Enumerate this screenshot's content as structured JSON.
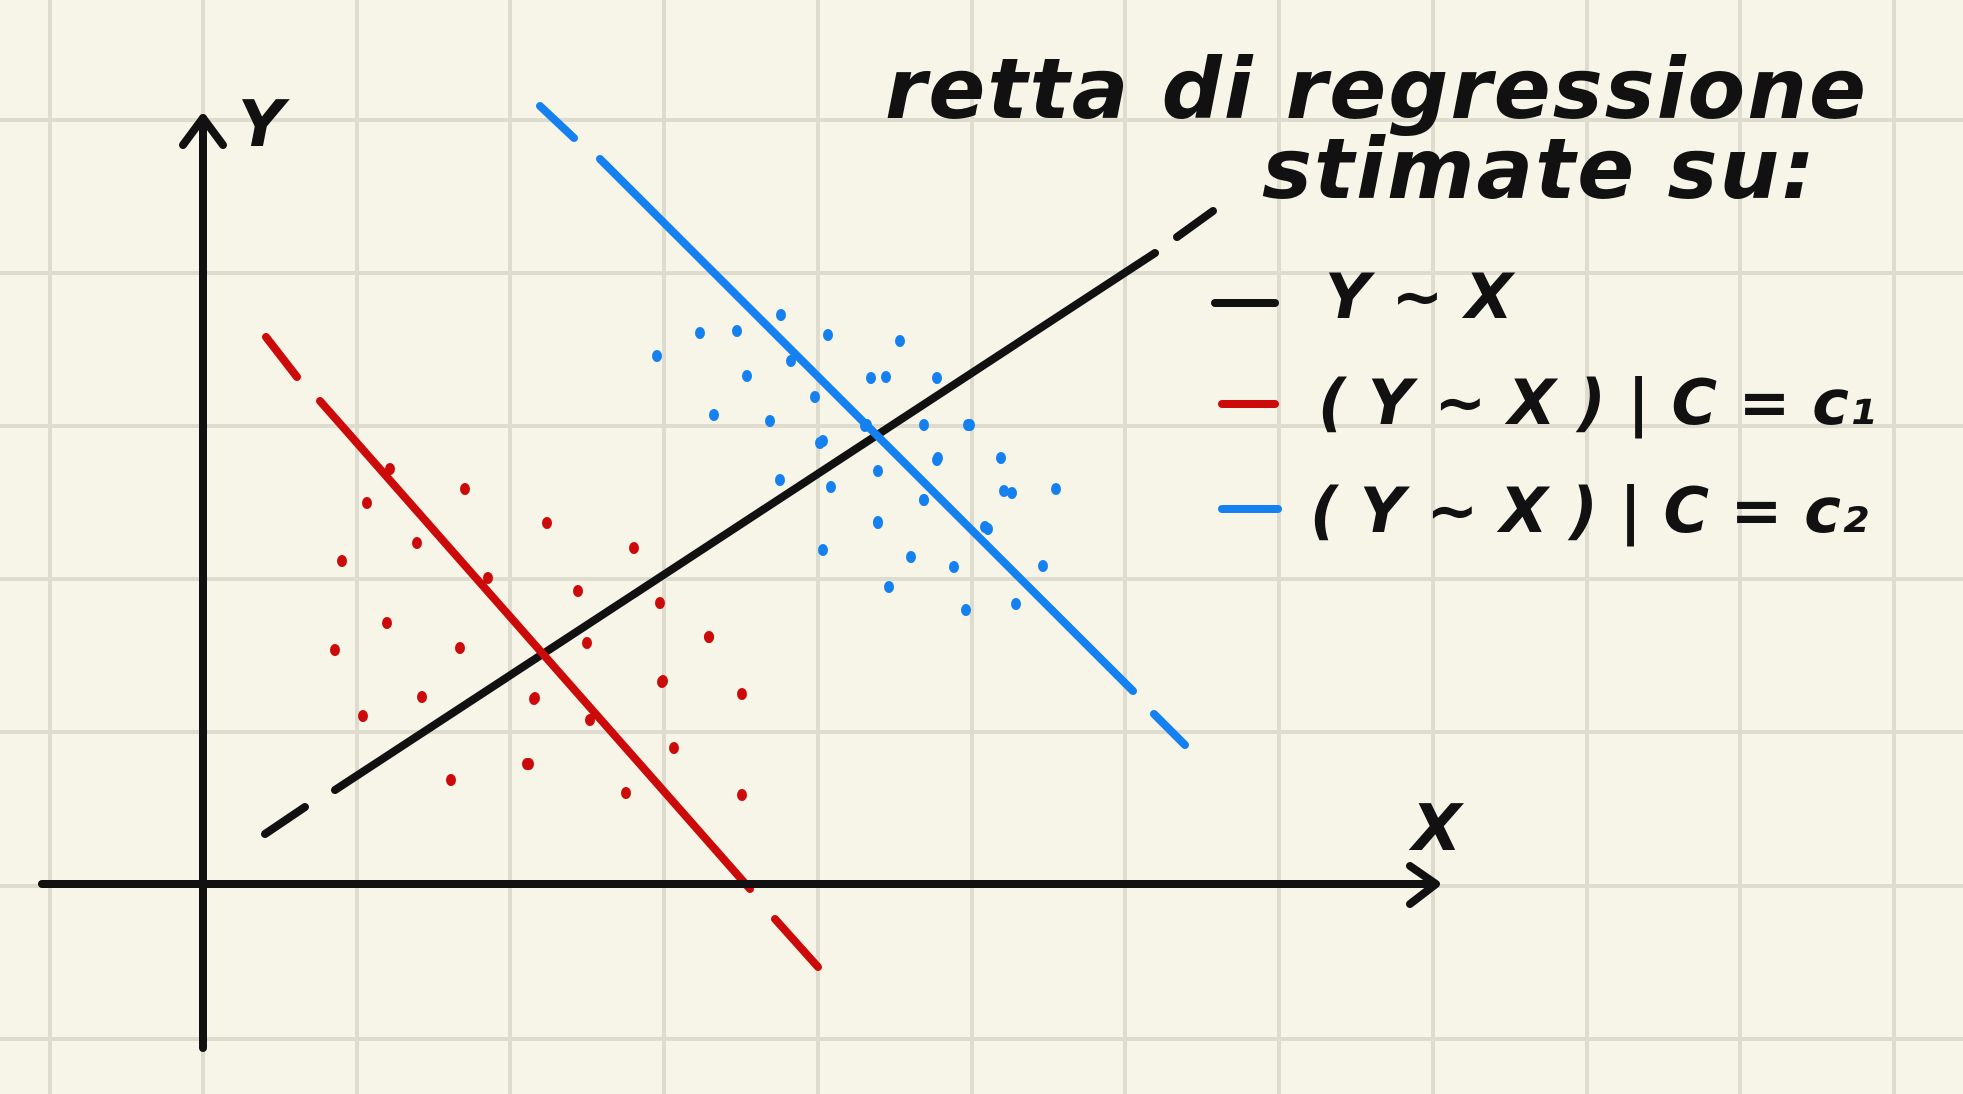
{
  "colors": {
    "background": "#f7f4e8",
    "grid": "#dedbcf",
    "ink": "#111111",
    "red": "#cc0a0a",
    "blue": "#1580f0"
  },
  "title": {
    "line1": "retta di regressione",
    "line2": "stimate su:"
  },
  "axes": {
    "x_label": "X",
    "y_label": "Y"
  },
  "legend": [
    {
      "label": "Y ~ X",
      "color": "#111111"
    },
    {
      "label": "( Y ~ X ) | C = c₁",
      "color": "#cc0a0a"
    },
    {
      "label": "( Y ~ X ) | C = c₂",
      "color": "#1580f0"
    }
  ],
  "chart_data": {
    "type": "scatter",
    "xlabel": "X",
    "ylabel": "Y",
    "grid": true,
    "legend_position": "top-right",
    "series": [
      {
        "name": "( Y ~ X ) | C = c₁",
        "color": "#cc0a0a",
        "trend": "negative"
      },
      {
        "name": "( Y ~ X ) | C = c₂",
        "color": "#1580f0",
        "trend": "negative"
      }
    ],
    "regression_lines": [
      {
        "name": "Y ~ X",
        "color": "#111111",
        "trend": "positive"
      },
      {
        "name": "( Y ~ X ) | C = c₁",
        "color": "#cc0a0a",
        "trend": "negative"
      },
      {
        "name": "( Y ~ X ) | C = c₂",
        "color": "#1580f0",
        "trend": "negative"
      }
    ]
  }
}
